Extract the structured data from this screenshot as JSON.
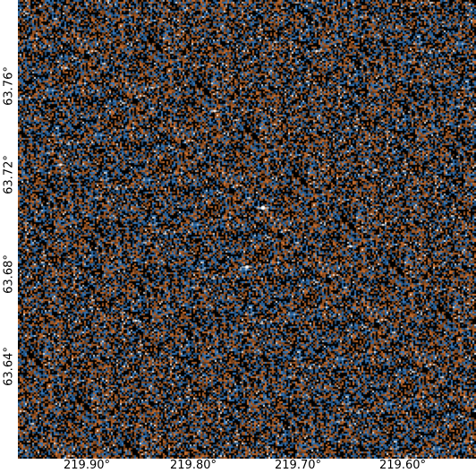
{
  "image": {
    "style": "astronomical sky survey cutout, false-color noise with point sources",
    "colors": {
      "background": "#000000",
      "orange": "#b8652a",
      "blue": "#2f6fae",
      "star": "#ffffff"
    }
  },
  "axes": {
    "x_ticks": [
      "219.90°",
      "219.80°",
      "219.70°",
      "219.60°"
    ],
    "y_ticks": [
      "63.76°",
      "63.72°",
      "63.68°",
      "63.64°"
    ]
  }
}
